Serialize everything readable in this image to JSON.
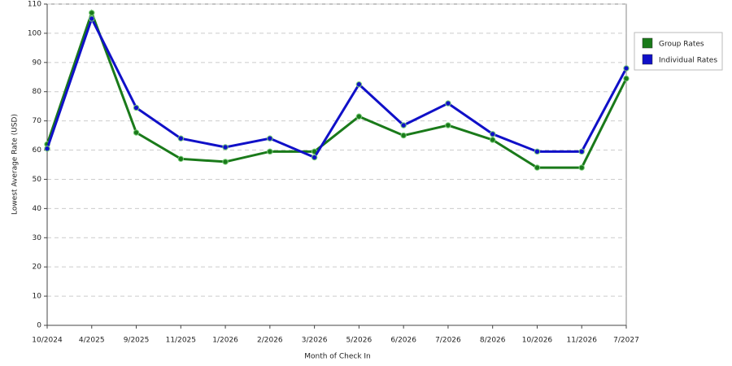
{
  "chart_data": {
    "type": "line",
    "x_label": "Month of Check In",
    "y_label": "Lowest Average Rate (USD)",
    "categories": [
      "10/2024",
      "4/2025",
      "9/2025",
      "11/2025",
      "1/2026",
      "2/2026",
      "3/2026",
      "5/2026",
      "6/2026",
      "7/2026",
      "8/2026",
      "10/2026",
      "11/2026",
      "7/2027"
    ],
    "series": [
      {
        "name": "Group Rates",
        "color": "#1a7a1a",
        "values": [
          62,
          107,
          66,
          57,
          56,
          59.5,
          59.5,
          71.5,
          65,
          68.5,
          63.5,
          54,
          54,
          84.5
        ]
      },
      {
        "name": "Individual Rates",
        "color": "#1010c8",
        "values": [
          60.5,
          105,
          74.5,
          64,
          61,
          64,
          57.5,
          82.5,
          68.5,
          76,
          65.5,
          59.5,
          59.5,
          88
        ]
      }
    ],
    "ylim": [
      0,
      110
    ],
    "yticks": [
      0,
      10,
      20,
      30,
      40,
      50,
      60,
      70,
      80,
      90,
      100,
      110
    ],
    "grid": true,
    "legend": "right"
  }
}
